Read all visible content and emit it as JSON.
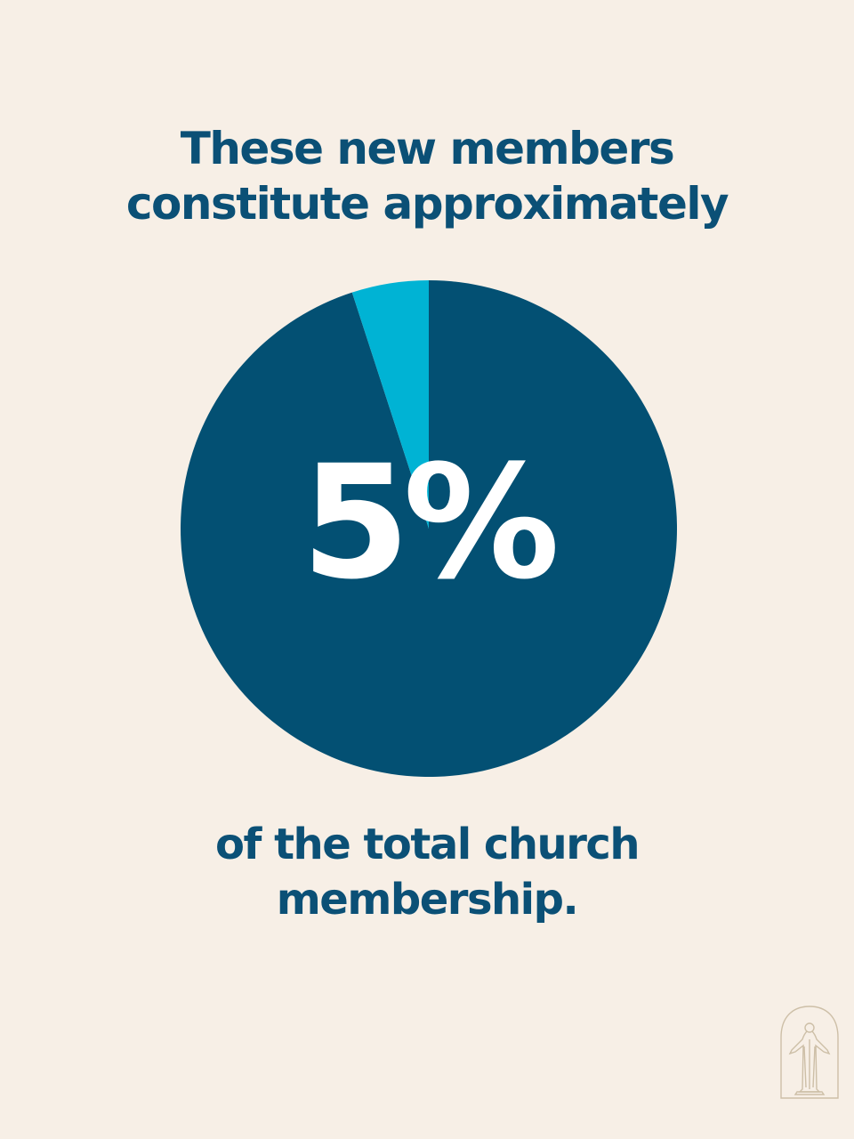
{
  "colors": {
    "background": "#f7efe6",
    "text": "#0b5076",
    "majority": "#035073",
    "highlight": "#00b3d4",
    "logo": "#cdbfa7"
  },
  "headline": {
    "line1": "These new members",
    "line2": "constitute approximately"
  },
  "percent_label": "5%",
  "footer": {
    "line1": "of the total church",
    "line2": "membership."
  },
  "logo": {
    "icon": "christus-statue-arch-icon"
  },
  "chart_data": {
    "type": "pie",
    "slices": [
      {
        "value": 95
      },
      {
        "value": 5
      }
    ],
    "start": "top",
    "direction": "clockwise",
    "data_label": "5%"
  }
}
